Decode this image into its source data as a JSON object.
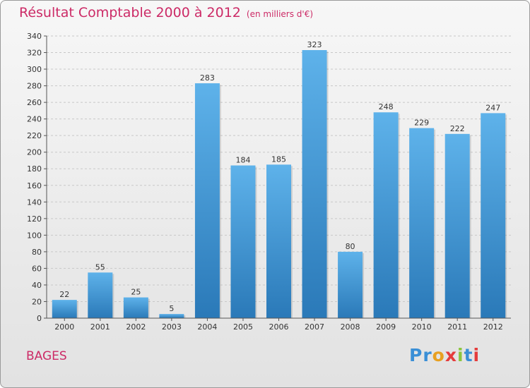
{
  "chart_data": {
    "type": "bar",
    "title": "Résultat Comptable 2000 à 2012",
    "subtitle": "(en milliers d'€)",
    "categories": [
      "2000",
      "2001",
      "2002",
      "2003",
      "2004",
      "2005",
      "2006",
      "2007",
      "2008",
      "2009",
      "2010",
      "2011",
      "2012"
    ],
    "values": [
      22,
      55,
      25,
      5,
      283,
      184,
      185,
      323,
      80,
      248,
      229,
      222,
      247
    ],
    "ylim": [
      0,
      340
    ],
    "yticks": [
      0,
      20,
      40,
      60,
      80,
      100,
      120,
      140,
      160,
      180,
      200,
      220,
      240,
      260,
      280,
      300,
      320,
      340
    ],
    "grid": true,
    "xlabel": "",
    "ylabel": ""
  },
  "place": "BAGES",
  "logo": {
    "letters": [
      "P",
      "r",
      "o",
      "x",
      "i",
      "t",
      "i"
    ],
    "colors": [
      "#3a8fd6",
      "#3a8fd6",
      "#e8a020",
      "#e53c3c",
      "#8cc63f",
      "#3a8fd6",
      "#e53c3c"
    ]
  },
  "colors": {
    "bar_top": "#5eb2ea",
    "bar_bottom": "#2a79b8",
    "title": "#cc2a66"
  }
}
